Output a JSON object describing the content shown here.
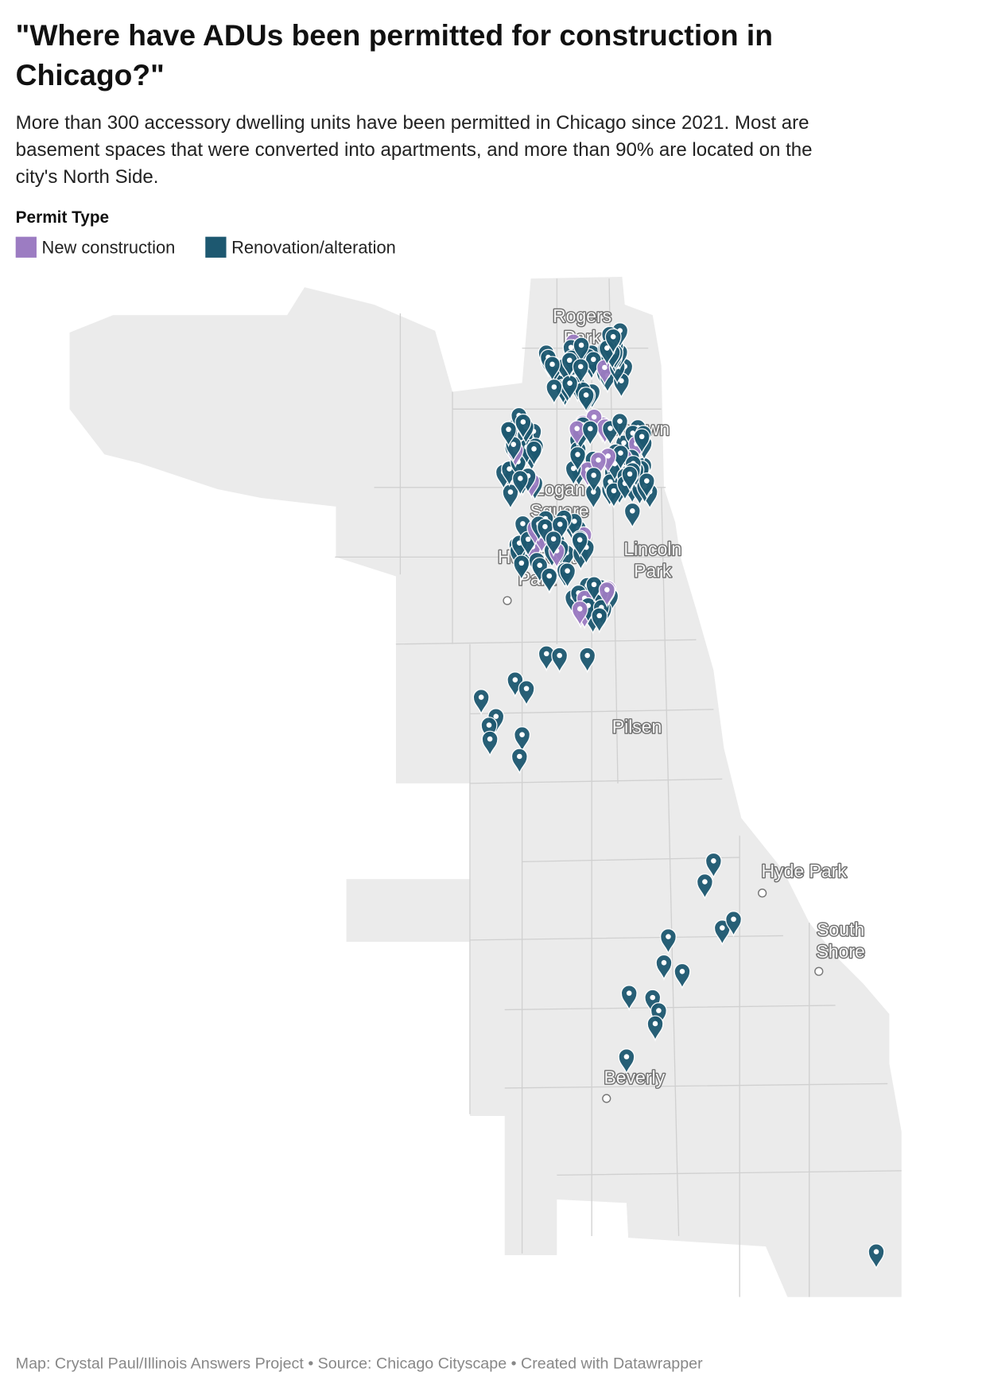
{
  "header": {
    "title_lines": [
      "\"Where have ADUs been permitted for construction in",
      "Chicago?\""
    ],
    "description_lines": [
      "More than 300 accessory dwelling units have been permitted in Chicago since 2021. Most are",
      "basement spaces that were converted into apartments, and more than 90% are located on the",
      "city's North Side."
    ]
  },
  "legend": {
    "title": "Permit Type",
    "items": [
      {
        "label": "New construction",
        "color": "#9c7cc2"
      },
      {
        "label": "Renovation/alteration",
        "color": "#1d5870"
      }
    ]
  },
  "neighborhoods": [
    {
      "lines": [
        "Rogers",
        "Park"
      ]
    },
    {
      "lines": [
        "Uptown"
      ]
    },
    {
      "lines": [
        "Logan",
        "Square"
      ]
    },
    {
      "lines": [
        "Humboldt",
        "Park"
      ]
    },
    {
      "lines": [
        "Lincoln",
        "Park"
      ]
    },
    {
      "lines": [
        "Pilsen"
      ]
    },
    {
      "lines": [
        "Hyde Park"
      ]
    },
    {
      "lines": [
        "South",
        "Shore"
      ]
    },
    {
      "lines": [
        "Beverly"
      ]
    }
  ],
  "footer": "Map: Crystal Paul/Illinois Answers Project • Source: Chicago Cityscape • Created with Datawrapper"
}
